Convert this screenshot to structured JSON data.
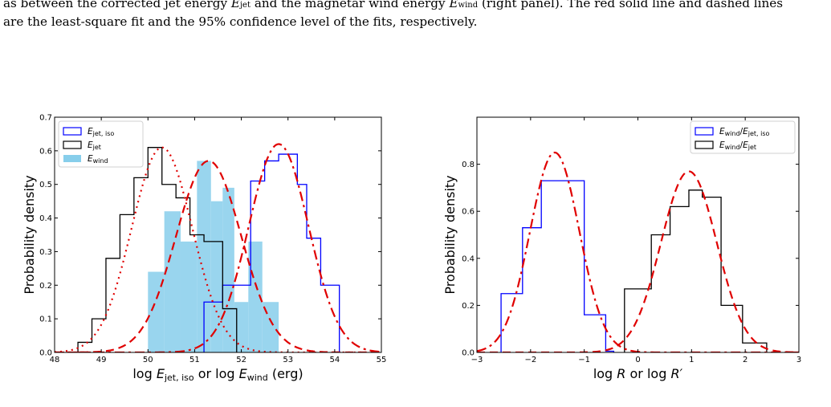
{
  "caption": {
    "line1_a": "as between the corrected jet energy ",
    "line1_b": " and the magnetar wind energy ",
    "line1_c": " (right panel). The red solid line and dashed lines",
    "line2": "are the least-square fit and the 95% confidence level of the fits, respectively.",
    "sym_ejet": "E",
    "sym_ejet_sub": "jet",
    "sym_ewind": "E",
    "sym_ewind_sub": "wind"
  },
  "colors": {
    "blue": "#0000ff",
    "black": "#000000",
    "lightblue": "#87ceeb",
    "red": "#e00000"
  },
  "chart_data": [
    {
      "type": "histogram",
      "xlabel_prefix": "log ",
      "xlabel_var1": "E",
      "xlabel_sub1": "jet, iso",
      "xlabel_mid": " or log ",
      "xlabel_var2": "E",
      "xlabel_sub2": "wind",
      "xlabel_suffix": "  (erg)",
      "ylabel": "Probability density",
      "xlim": [
        48,
        55
      ],
      "ylim": [
        0,
        0.7
      ],
      "xticks": [
        "48",
        "49",
        "50",
        "51",
        "52",
        "53",
        "54",
        "55"
      ],
      "yticks": [
        "0.0",
        "0.1",
        "0.2",
        "0.3",
        "0.4",
        "0.5",
        "0.6",
        "0.7"
      ],
      "legend_position": "top-left",
      "legend": [
        {
          "var": "E",
          "sub": "jet, iso",
          "style": "blue-step"
        },
        {
          "var": "E",
          "sub": "jet",
          "style": "black-step"
        },
        {
          "var": "E",
          "sub": "wind",
          "style": "lightblue-fill"
        }
      ],
      "series": [
        {
          "style": "blue-step",
          "bins": [
            [
              51.2,
              51.4,
              0.15
            ],
            [
              51.4,
              51.6,
              0.15
            ],
            [
              51.6,
              51.8,
              0.2
            ],
            [
              51.8,
              52.2,
              0.2
            ],
            [
              52.2,
              52.5,
              0.51
            ],
            [
              52.5,
              52.8,
              0.57
            ],
            [
              52.8,
              53.2,
              0.59
            ],
            [
              53.2,
              53.4,
              0.5
            ],
            [
              53.4,
              53.7,
              0.34
            ],
            [
              53.7,
              54.1,
              0.2
            ]
          ]
        },
        {
          "style": "black-step",
          "bins": [
            [
              48.5,
              48.8,
              0.03
            ],
            [
              48.8,
              49.1,
              0.1
            ],
            [
              49.1,
              49.4,
              0.28
            ],
            [
              49.4,
              49.7,
              0.41
            ],
            [
              49.7,
              50.0,
              0.52
            ],
            [
              50.0,
              50.3,
              0.61
            ],
            [
              50.3,
              50.6,
              0.5
            ],
            [
              50.6,
              50.9,
              0.46
            ],
            [
              50.9,
              51.2,
              0.35
            ],
            [
              51.2,
              51.6,
              0.33
            ],
            [
              51.6,
              51.9,
              0.13
            ]
          ]
        },
        {
          "style": "lightblue-fill",
          "bins": [
            [
              50.0,
              50.35,
              0.24
            ],
            [
              50.35,
              50.7,
              0.42
            ],
            [
              50.7,
              51.05,
              0.33
            ],
            [
              51.05,
              51.35,
              0.57
            ],
            [
              51.35,
              51.6,
              0.45
            ],
            [
              51.6,
              51.85,
              0.49
            ],
            [
              51.85,
              52.15,
              0.15
            ],
            [
              52.15,
              52.45,
              0.33
            ],
            [
              52.45,
              52.8,
              0.15
            ]
          ]
        }
      ],
      "fits": [
        {
          "style": "dotted",
          "mu": 50.3,
          "peak": 0.61,
          "sigma": 0.65
        },
        {
          "style": "dashed",
          "mu": 51.3,
          "peak": 0.57,
          "sigma": 0.7
        },
        {
          "style": "dashdot",
          "mu": 52.8,
          "peak": 0.62,
          "sigma": 0.64
        }
      ]
    },
    {
      "type": "histogram",
      "xlabel_prefix": "log ",
      "xlabel_var1": "R",
      "xlabel_mid": " or log ",
      "xlabel_var2": "R′",
      "ylabel": "Probability density",
      "xlim": [
        -3,
        3
      ],
      "ylim": [
        0,
        1.0
      ],
      "xticks": [
        "−3",
        "−2",
        "−1",
        "0",
        "1",
        "2",
        "3"
      ],
      "yticks": [
        "0.0",
        "0.2",
        "0.4",
        "0.6",
        "0.8"
      ],
      "legend_position": "top-right",
      "legend": [
        {
          "var": "E",
          "sub": "wind",
          "slash": "/",
          "var2": "E",
          "sub2": "jet, iso",
          "style": "blue-step"
        },
        {
          "var": "E",
          "sub": "wind",
          "slash": "/",
          "var2": "E",
          "sub2": "jet",
          "style": "black-step"
        }
      ],
      "series": [
        {
          "style": "blue-step",
          "bins": [
            [
              -2.55,
              -2.15,
              0.25
            ],
            [
              -2.15,
              -1.8,
              0.53
            ],
            [
              -1.8,
              -1.0,
              0.73
            ],
            [
              -1.0,
              -0.6,
              0.16
            ],
            [
              -0.6,
              -0.45,
              0.005
            ]
          ]
        },
        {
          "style": "black-step",
          "bins": [
            [
              -0.25,
              0.25,
              0.27
            ],
            [
              0.25,
              0.6,
              0.5
            ],
            [
              0.6,
              0.95,
              0.62
            ],
            [
              0.95,
              1.2,
              0.69
            ],
            [
              1.2,
              1.55,
              0.66
            ],
            [
              1.55,
              1.95,
              0.2
            ],
            [
              1.95,
              2.4,
              0.04
            ]
          ]
        }
      ],
      "fits": [
        {
          "style": "dashdot",
          "mu": -1.55,
          "peak": 0.85,
          "sigma": 0.46
        },
        {
          "style": "dashed",
          "mu": 0.95,
          "peak": 0.77,
          "sigma": 0.52
        }
      ]
    }
  ]
}
